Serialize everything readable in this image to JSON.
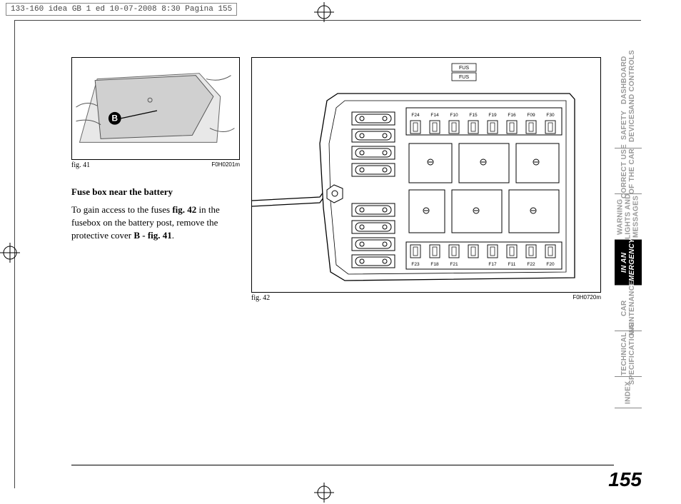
{
  "header": {
    "info": "133-160 idea GB 1 ed  10-07-2008  8:30  Pagina 155"
  },
  "fig41": {
    "caption": "fig. 41",
    "code": "F0H0201m",
    "callout": "B"
  },
  "fig42": {
    "caption": "fig. 42",
    "code": "F0H0720m",
    "top_labels": [
      "FUS",
      "FUS"
    ],
    "fuse_row_top": [
      "F24",
      "F14",
      "F10",
      "F15",
      "F19",
      "F16",
      "F09",
      "F30"
    ],
    "fuse_row_bottom": [
      "F23",
      "F18",
      "F21",
      "",
      "F17",
      "F11",
      "F22",
      "F20"
    ]
  },
  "text": {
    "section_title": "Fuse box near the battery",
    "para_1a": "To gain access to the fuses ",
    "para_1b": "fig. 42",
    "para_1c": " in the fusebox on the battery post, remove the protective cover ",
    "para_1d": "B - fig. 41",
    "para_1e": "."
  },
  "tabs": [
    {
      "label": "DASHBOARD\nAND CONTROLS",
      "active": false
    },
    {
      "label": "SAFETY\nDEVICES",
      "active": false
    },
    {
      "label": "CORRECT USE\nOF THE CAR",
      "active": false
    },
    {
      "label": "WARNING\nLIGHTS AND\nMESSAGES",
      "active": false
    },
    {
      "label": "IN AN\nEMERGENCY",
      "active": true
    },
    {
      "label": "CAR\nMAINTENANCE",
      "active": false
    },
    {
      "label": "TECHNICAL\nSPECIFICATIONS",
      "active": false
    },
    {
      "label": "INDEX",
      "active": false
    }
  ],
  "page_number": "155",
  "colors": {
    "tab_inactive": "#999999",
    "tab_active_bg": "#000000",
    "tab_active_fg": "#ffffff",
    "border": "#000000"
  }
}
